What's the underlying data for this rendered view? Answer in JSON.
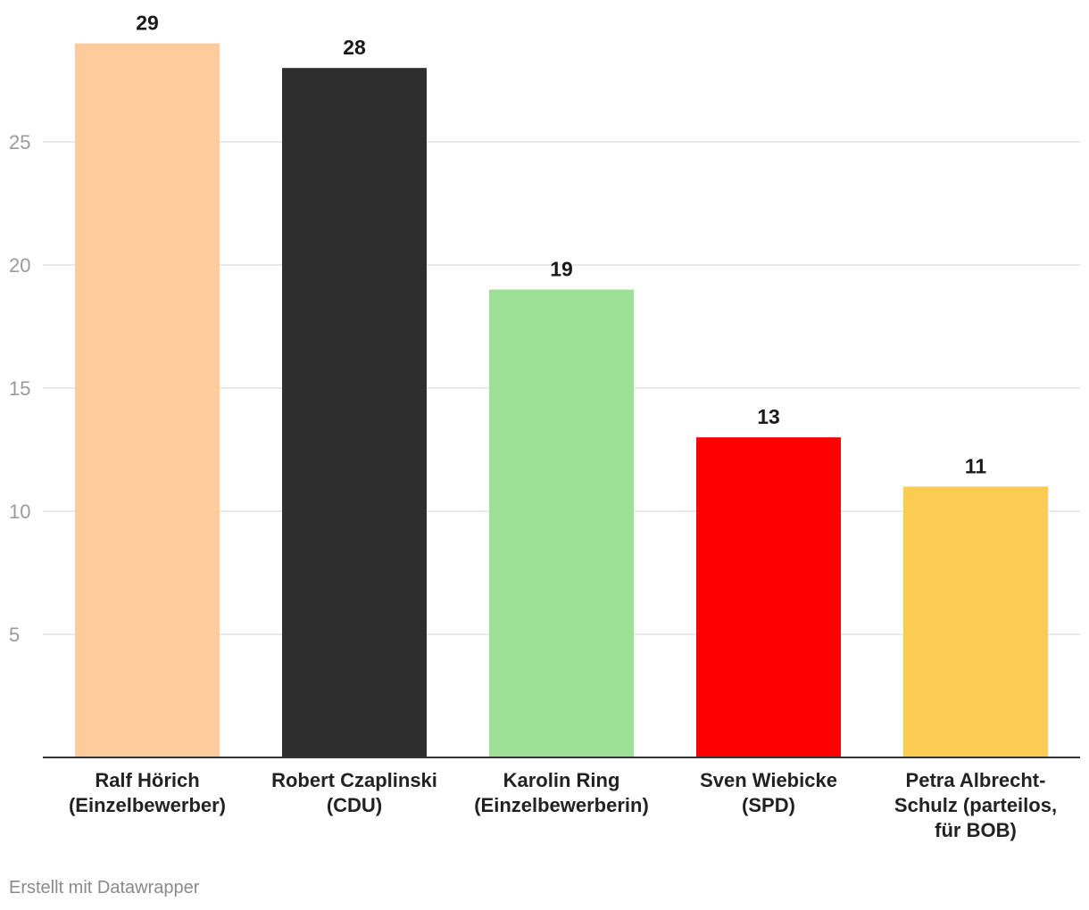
{
  "chart_data": {
    "type": "bar",
    "categories": [
      "Ralf Hörich (Einzelbewerber)",
      "Robert Czaplinski (CDU)",
      "Karolin Ring (Einzelbewerberin)",
      "Sven Wiebicke (SPD)",
      "Petra Albrecht-Schulz (parteilos, für BOB)"
    ],
    "category_label_lines": [
      [
        "Ralf Hörich",
        "(Einzelbewerber)"
      ],
      [
        "Robert Czaplinski",
        "(CDU)"
      ],
      [
        "Karolin Ring",
        "(Einzelbewerberin)"
      ],
      [
        "Sven Wiebicke",
        "(SPD)"
      ],
      [
        "Petra Albrecht-",
        "Schulz (parteilos,",
        "für BOB)"
      ]
    ],
    "values": [
      29,
      28,
      19,
      13,
      11
    ],
    "colors": [
      "#fecb9c",
      "#2e2e2e",
      "#9ddf94",
      "#ff0000",
      "#fdca52"
    ],
    "ylim": [
      0,
      30
    ],
    "yticks": [
      5,
      10,
      15,
      20,
      25
    ],
    "grid": true,
    "title": "",
    "xlabel": "",
    "ylabel": ""
  },
  "footer": {
    "credit": "Erstellt mit Datawrapper"
  }
}
